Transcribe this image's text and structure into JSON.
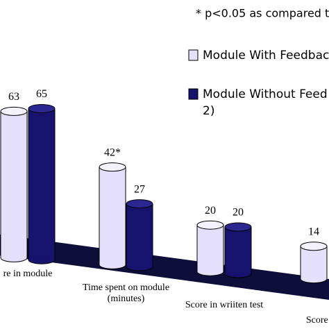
{
  "chart_data": {
    "type": "bar3d",
    "annotation": "* p<0.05 as compared t",
    "legend_note": "2)",
    "categories": [
      "re in module",
      "Time spent on module (minutes)",
      "Score in wriiten test",
      "Score in M"
    ],
    "series": [
      {
        "name": "Module With Feedbac",
        "color": "#e4e0fa",
        "values": [
          63,
          42,
          20,
          14
        ],
        "value_labels": [
          "63",
          "42*",
          "20",
          "14"
        ]
      },
      {
        "name": "Module Without Feed",
        "color": "#15136e",
        "values": [
          65,
          27,
          20,
          null
        ]
      }
    ]
  }
}
